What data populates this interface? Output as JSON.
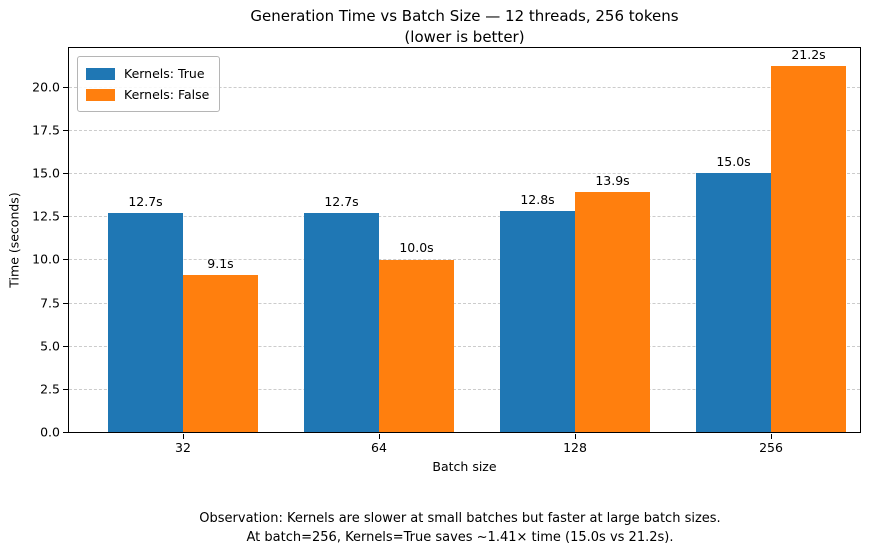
{
  "figure": {
    "title_line1": "Generation Time vs Batch Size — 12 threads, 256 tokens",
    "title_line2": "(lower is better)",
    "footer_line1": "Observation: Kernels are slower at small batches but faster at large batch sizes.",
    "footer_line2": "At batch=256, Kernels=True saves ~1.41× time (15.0s vs 21.2s)."
  },
  "chart_data": {
    "type": "bar",
    "title": "Generation Time vs Batch Size — 12 threads, 256 tokens (lower is better)",
    "xlabel": "Batch size",
    "ylabel": "Time (seconds)",
    "categories": [
      "32",
      "64",
      "128",
      "256"
    ],
    "series": [
      {
        "name": "Kernels: True",
        "color": "#1f77b4",
        "values": [
          12.7,
          12.7,
          12.8,
          15.0
        ],
        "labels": [
          "12.7s",
          "12.7s",
          "12.8s",
          "15.0s"
        ]
      },
      {
        "name": "Kernels: False",
        "color": "#ff7f0e",
        "values": [
          9.1,
          10.0,
          13.9,
          21.2
        ],
        "labels": [
          "9.1s",
          "10.0s",
          "13.9s",
          "21.2s"
        ]
      }
    ],
    "yticks": [
      0.0,
      2.5,
      5.0,
      7.5,
      10.0,
      12.5,
      15.0,
      17.5,
      20.0
    ],
    "ytick_labels": [
      "0.0",
      "2.5",
      "5.0",
      "7.5",
      "10.0",
      "12.5",
      "15.0",
      "17.5",
      "20.0"
    ],
    "ylim": [
      0,
      22.26
    ],
    "grid": "horizontal-dashed",
    "legend_position": "upper-left",
    "grid_color": "#cccccc",
    "spine_color": "#000000"
  }
}
